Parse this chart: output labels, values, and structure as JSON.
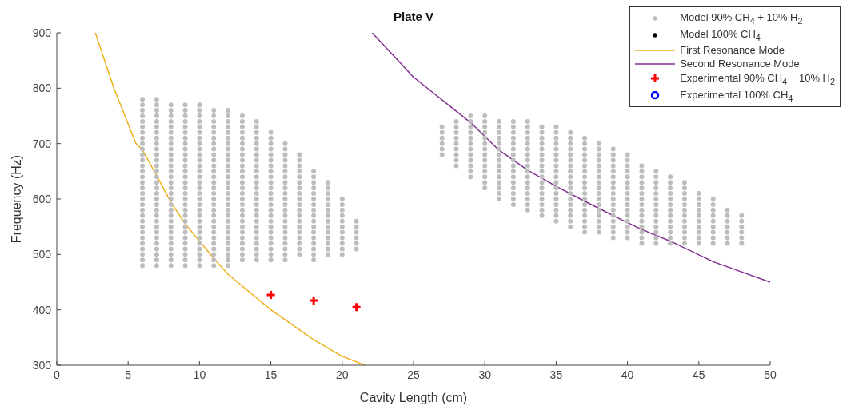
{
  "chart_data": {
    "type": "scatter",
    "title": "Plate V",
    "xlabel": "Cavity Length (cm)",
    "ylabel": "Frequency (Hz)",
    "xlim": [
      0,
      50
    ],
    "ylim": [
      300,
      900
    ],
    "xticks": [
      0,
      5,
      10,
      15,
      20,
      25,
      30,
      35,
      40,
      45,
      50
    ],
    "yticks": [
      300,
      400,
      500,
      600,
      700,
      800,
      900
    ],
    "legend": "top right",
    "series": [
      {
        "name": "Model 90% CH$_{4}$ + 10% H$_{2}$",
        "marker": "circle",
        "color": "#bdbdbd",
        "x": [
          6,
          6,
          6,
          6,
          6,
          6,
          6,
          6,
          6,
          6,
          6,
          6,
          6,
          6,
          6,
          6,
          6,
          6,
          6,
          6,
          6,
          6,
          6,
          6,
          6,
          6,
          6,
          6,
          6,
          6,
          6,
          7,
          7,
          7,
          7,
          7,
          7,
          7,
          7,
          7,
          7,
          7,
          7,
          7,
          7,
          7,
          7,
          7,
          7,
          7,
          7,
          7,
          7,
          7,
          7,
          7,
          7,
          7,
          7,
          7,
          7,
          7,
          8,
          8,
          8,
          8,
          8,
          8,
          8,
          8,
          8,
          8,
          8,
          8,
          8,
          8,
          8,
          8,
          8,
          8,
          8,
          8,
          8,
          8,
          8,
          8,
          8,
          8,
          8,
          8,
          8,
          8,
          9,
          9,
          9,
          9,
          9,
          9,
          9,
          9,
          9,
          9,
          9,
          9,
          9,
          9,
          9,
          9,
          9,
          9,
          9,
          9,
          9,
          9,
          9,
          9,
          9,
          9,
          9,
          9,
          9,
          9,
          10,
          10,
          10,
          10,
          10,
          10,
          10,
          10,
          10,
          10,
          10,
          10,
          10,
          10,
          10,
          10,
          10,
          10,
          10,
          10,
          10,
          10,
          10,
          10,
          10,
          10,
          10,
          10,
          10,
          10,
          11,
          11,
          11,
          11,
          11,
          11,
          11,
          11,
          11,
          11,
          11,
          11,
          11,
          11,
          11,
          11,
          11,
          11,
          11,
          11,
          11,
          11,
          11,
          11,
          11,
          11,
          11,
          11,
          11,
          12,
          12,
          12,
          12,
          12,
          12,
          12,
          12,
          12,
          12,
          12,
          12,
          12,
          12,
          12,
          12,
          12,
          12,
          12,
          12,
          12,
          12,
          12,
          12,
          12,
          12,
          12,
          12,
          12,
          12,
          13,
          13,
          13,
          13,
          13,
          13,
          13,
          13,
          13,
          13,
          13,
          13,
          13,
          13,
          13,
          13,
          13,
          13,
          13,
          13,
          13,
          13,
          13,
          13,
          13,
          13,
          13,
          14,
          14,
          14,
          14,
          14,
          14,
          14,
          14,
          14,
          14,
          14,
          14,
          14,
          14,
          14,
          14,
          14,
          14,
          14,
          14,
          14,
          14,
          14,
          14,
          14,
          14,
          15,
          15,
          15,
          15,
          15,
          15,
          15,
          15,
          15,
          15,
          15,
          15,
          15,
          15,
          15,
          15,
          15,
          15,
          15,
          15,
          15,
          15,
          15,
          15,
          16,
          16,
          16,
          16,
          16,
          16,
          16,
          16,
          16,
          16,
          16,
          16,
          16,
          16,
          16,
          16,
          16,
          16,
          16,
          16,
          16,
          16,
          17,
          17,
          17,
          17,
          17,
          17,
          17,
          17,
          17,
          17,
          17,
          17,
          17,
          17,
          17,
          17,
          17,
          17,
          17,
          18,
          18,
          18,
          18,
          18,
          18,
          18,
          18,
          18,
          18,
          18,
          18,
          18,
          18,
          18,
          18,
          18,
          19,
          19,
          19,
          19,
          19,
          19,
          19,
          19,
          19,
          19,
          19,
          19,
          19,
          19,
          20,
          20,
          20,
          20,
          20,
          20,
          20,
          20,
          20,
          20,
          20,
          21,
          21,
          21,
          21,
          21,
          21,
          27,
          27,
          27,
          27,
          27,
          27,
          28,
          28,
          28,
          28,
          28,
          28,
          28,
          28,
          28,
          29,
          29,
          29,
          29,
          29,
          29,
          29,
          29,
          29,
          29,
          29,
          29,
          30,
          30,
          30,
          30,
          30,
          30,
          30,
          30,
          30,
          30,
          30,
          30,
          30,
          30,
          31,
          31,
          31,
          31,
          31,
          31,
          31,
          31,
          31,
          31,
          31,
          31,
          31,
          31,
          31,
          32,
          32,
          32,
          32,
          32,
          32,
          32,
          32,
          32,
          32,
          32,
          32,
          32,
          32,
          32,
          32,
          33,
          33,
          33,
          33,
          33,
          33,
          33,
          33,
          33,
          33,
          33,
          33,
          33,
          33,
          33,
          33,
          33,
          34,
          34,
          34,
          34,
          34,
          34,
          34,
          34,
          34,
          34,
          34,
          34,
          34,
          34,
          34,
          34,
          34,
          35,
          35,
          35,
          35,
          35,
          35,
          35,
          35,
          35,
          35,
          35,
          35,
          35,
          35,
          35,
          35,
          35,
          35,
          36,
          36,
          36,
          36,
          36,
          36,
          36,
          36,
          36,
          36,
          36,
          36,
          36,
          36,
          36,
          36,
          36,
          36,
          37,
          37,
          37,
          37,
          37,
          37,
          37,
          37,
          37,
          37,
          37,
          37,
          37,
          37,
          37,
          37,
          37,
          37,
          38,
          38,
          38,
          38,
          38,
          38,
          38,
          38,
          38,
          38,
          38,
          38,
          38,
          38,
          38,
          38,
          38,
          39,
          39,
          39,
          39,
          39,
          39,
          39,
          39,
          39,
          39,
          39,
          39,
          39,
          39,
          39,
          39,
          39,
          40,
          40,
          40,
          40,
          40,
          40,
          40,
          40,
          40,
          40,
          40,
          40,
          40,
          40,
          40,
          40,
          41,
          41,
          41,
          41,
          41,
          41,
          41,
          41,
          41,
          41,
          41,
          41,
          41,
          41,
          41,
          42,
          42,
          42,
          42,
          42,
          42,
          42,
          42,
          42,
          42,
          42,
          42,
          42,
          42,
          43,
          43,
          43,
          43,
          43,
          43,
          43,
          43,
          43,
          43,
          43,
          43,
          43,
          44,
          44,
          44,
          44,
          44,
          44,
          44,
          44,
          44,
          44,
          44,
          44,
          45,
          45,
          45,
          45,
          45,
          45,
          45,
          45,
          45,
          45,
          46,
          46,
          46,
          46,
          46,
          46,
          46,
          46,
          46,
          47,
          47,
          47,
          47,
          47,
          47,
          47,
          48,
          48,
          48,
          48,
          48,
          48
        ],
        "values": [
          480,
          490,
          500,
          510,
          520,
          530,
          540,
          550,
          560,
          570,
          580,
          590,
          600,
          610,
          620,
          630,
          640,
          650,
          660,
          670,
          680,
          690,
          700,
          710,
          720,
          730,
          740,
          750,
          760,
          770,
          780,
          480,
          490,
          500,
          510,
          520,
          530,
          540,
          550,
          560,
          570,
          580,
          590,
          600,
          610,
          620,
          630,
          640,
          650,
          660,
          670,
          680,
          690,
          700,
          710,
          720,
          730,
          740,
          750,
          760,
          770,
          780,
          480,
          490,
          500,
          510,
          520,
          530,
          540,
          550,
          560,
          570,
          580,
          590,
          600,
          610,
          620,
          630,
          640,
          650,
          660,
          670,
          680,
          690,
          700,
          710,
          720,
          730,
          740,
          750,
          760,
          770,
          480,
          490,
          500,
          510,
          520,
          530,
          540,
          550,
          560,
          570,
          580,
          590,
          600,
          610,
          620,
          630,
          640,
          650,
          660,
          670,
          680,
          690,
          700,
          710,
          720,
          730,
          740,
          750,
          760,
          770,
          480,
          490,
          500,
          510,
          520,
          530,
          540,
          550,
          560,
          570,
          580,
          590,
          600,
          610,
          620,
          630,
          640,
          650,
          660,
          670,
          680,
          690,
          700,
          710,
          720,
          730,
          740,
          750,
          760,
          770,
          480,
          490,
          500,
          510,
          520,
          530,
          540,
          550,
          560,
          570,
          580,
          590,
          600,
          610,
          620,
          630,
          640,
          650,
          660,
          670,
          680,
          690,
          700,
          710,
          720,
          730,
          740,
          750,
          760,
          480,
          490,
          500,
          510,
          520,
          530,
          540,
          550,
          560,
          570,
          580,
          590,
          600,
          610,
          620,
          630,
          640,
          650,
          660,
          670,
          680,
          690,
          700,
          710,
          720,
          730,
          740,
          750,
          760,
          490,
          500,
          510,
          520,
          530,
          540,
          550,
          560,
          570,
          580,
          590,
          600,
          610,
          620,
          630,
          640,
          650,
          660,
          670,
          680,
          690,
          700,
          710,
          720,
          730,
          740,
          750,
          490,
          500,
          510,
          520,
          530,
          540,
          550,
          560,
          570,
          580,
          590,
          600,
          610,
          620,
          630,
          640,
          650,
          660,
          670,
          680,
          690,
          700,
          710,
          720,
          730,
          740,
          490,
          500,
          510,
          520,
          530,
          540,
          550,
          560,
          570,
          580,
          590,
          600,
          610,
          620,
          630,
          640,
          650,
          660,
          670,
          680,
          690,
          700,
          710,
          720,
          490,
          500,
          510,
          520,
          530,
          540,
          550,
          560,
          570,
          580,
          590,
          600,
          610,
          620,
          630,
          640,
          650,
          660,
          670,
          680,
          690,
          700,
          490,
          500,
          510,
          520,
          530,
          540,
          550,
          560,
          570,
          580,
          590,
          600,
          610,
          620,
          630,
          640,
          650,
          660,
          670,
          680,
          490,
          500,
          510,
          520,
          530,
          540,
          550,
          560,
          570,
          580,
          590,
          600,
          610,
          620,
          630,
          640,
          650,
          500,
          510,
          520,
          530,
          540,
          550,
          560,
          570,
          580,
          590,
          600,
          610,
          620,
          630,
          500,
          510,
          520,
          530,
          540,
          550,
          560,
          570,
          580,
          590,
          600,
          510,
          520,
          530,
          540,
          550,
          560,
          680,
          690,
          700,
          710,
          720,
          730,
          660,
          670,
          680,
          690,
          700,
          710,
          720,
          730,
          740,
          640,
          650,
          660,
          670,
          680,
          690,
          700,
          710,
          720,
          730,
          740,
          750,
          620,
          630,
          640,
          650,
          660,
          670,
          680,
          690,
          700,
          710,
          720,
          730,
          740,
          750,
          600,
          610,
          620,
          630,
          640,
          650,
          660,
          670,
          680,
          690,
          700,
          710,
          720,
          730,
          740,
          590,
          600,
          610,
          620,
          630,
          640,
          650,
          660,
          670,
          680,
          690,
          700,
          710,
          720,
          730,
          740,
          580,
          590,
          600,
          610,
          620,
          630,
          640,
          650,
          660,
          670,
          680,
          690,
          700,
          710,
          720,
          730,
          740,
          570,
          580,
          590,
          600,
          610,
          620,
          630,
          640,
          650,
          660,
          670,
          680,
          690,
          700,
          710,
          720,
          730,
          560,
          570,
          580,
          590,
          600,
          610,
          620,
          630,
          640,
          650,
          660,
          670,
          680,
          690,
          700,
          710,
          720,
          730,
          550,
          560,
          570,
          580,
          590,
          600,
          610,
          620,
          630,
          640,
          650,
          660,
          670,
          680,
          690,
          700,
          710,
          720,
          540,
          550,
          560,
          570,
          580,
          590,
          600,
          610,
          620,
          630,
          640,
          650,
          660,
          670,
          680,
          690,
          700,
          710,
          540,
          550,
          560,
          570,
          580,
          590,
          600,
          610,
          620,
          630,
          640,
          650,
          660,
          670,
          680,
          690,
          700,
          530,
          540,
          550,
          560,
          570,
          580,
          590,
          600,
          610,
          620,
          630,
          640,
          650,
          660,
          670,
          680,
          690,
          530,
          540,
          550,
          560,
          570,
          580,
          590,
          600,
          610,
          620,
          630,
          640,
          650,
          660,
          670,
          680,
          520,
          530,
          540,
          550,
          560,
          570,
          580,
          590,
          600,
          610,
          620,
          630,
          640,
          650,
          660,
          520,
          530,
          540,
          550,
          560,
          570,
          580,
          590,
          600,
          610,
          620,
          630,
          640,
          650,
          520,
          530,
          540,
          550,
          560,
          570,
          580,
          590,
          600,
          610,
          620,
          630,
          640,
          520,
          530,
          540,
          550,
          560,
          570,
          580,
          590,
          600,
          610,
          620,
          630,
          520,
          530,
          540,
          550,
          560,
          570,
          580,
          590,
          600,
          610,
          520,
          530,
          540,
          550,
          560,
          570,
          580,
          590,
          600,
          520,
          530,
          540,
          550,
          560,
          570,
          580,
          520,
          530,
          540,
          550,
          560,
          570
        ]
      },
      {
        "name": "Model 100% CH$_{4}$",
        "marker": "circle",
        "color": "#000000"
      },
      {
        "name": "First Resonance Mode",
        "type": "line",
        "marker": "none",
        "color": "#edb120",
        "x": [
          2.7,
          4,
          5.55,
          6,
          7,
          8,
          9,
          10,
          11,
          12,
          15,
          18,
          20,
          21.6
        ],
        "values": [
          900,
          800,
          700,
          689,
          642,
          594,
          555,
          524,
          493,
          464,
          400,
          346,
          316,
          300
        ]
      },
      {
        "name": "Second Resonance Mode",
        "type": "line",
        "marker": "none",
        "color": "#7e2f8e",
        "x": [
          22.1,
          25,
          29,
          31,
          33,
          35,
          37,
          39,
          41,
          43,
          46,
          50
        ],
        "values": [
          900,
          820,
          738,
          688,
          652,
          623,
          596,
          570,
          545,
          524,
          487,
          450
        ]
      },
      {
        "name": "Experimental 90% CH$_{4}$ + 10% H$_{2}$",
        "marker": "cross",
        "color": "#ff0000",
        "x": [
          15,
          18,
          21
        ],
        "values": [
          427,
          417,
          405
        ]
      },
      {
        "name": "Experimental 100% CH$_{4}$",
        "marker": "open-circle",
        "color": "#0000ff"
      }
    ]
  }
}
